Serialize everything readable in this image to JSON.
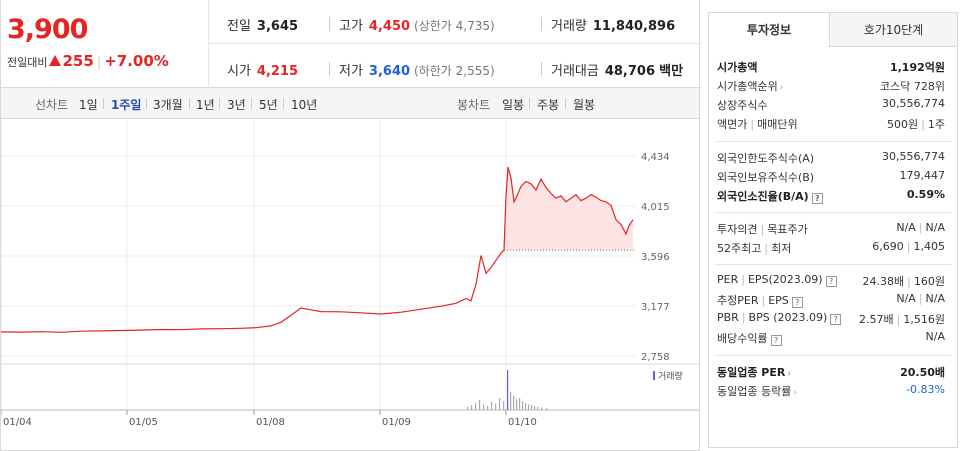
{
  "quote": {
    "price": "3,900",
    "change_label": "전일대비",
    "change_amount": "255",
    "change_rate": "+7.00%",
    "prev_close_label": "전일",
    "prev_close": "3,645",
    "open_label": "시가",
    "open": "4,215",
    "high_label": "고가",
    "high": "4,450",
    "upper_limit": "(상한가 4,735)",
    "low_label": "저가",
    "low": "3,640",
    "lower_limit": "(하한가 2,555)",
    "volume_label": "거래량",
    "volume": "11,840,896",
    "amount_label": "거래대금",
    "amount": "48,706",
    "amount_unit": "백만"
  },
  "periods": {
    "line_title": "선차트",
    "line_items": [
      "1일",
      "1주일",
      "3개월",
      "1년",
      "3년",
      "5년",
      "10년"
    ],
    "line_selected": 1,
    "candle_title": "봉차트",
    "candle_items": [
      "일봉",
      "주봉",
      "월봉"
    ]
  },
  "chart_data": {
    "type": "line",
    "y_ticks": [
      "4,434",
      "4,015",
      "3,596",
      "3,177",
      "2,758"
    ],
    "ylim": [
      2758,
      4434
    ],
    "x_ticks": [
      "01/04",
      "01/05",
      "01/08",
      "01/09",
      "01/10"
    ],
    "reference_price": 3645,
    "volume_legend": "거래량",
    "price_series": [
      [
        0,
        2960
      ],
      [
        20,
        2958
      ],
      [
        40,
        2962
      ],
      [
        60,
        2957
      ],
      [
        80,
        2966
      ],
      [
        100,
        2968
      ],
      [
        120,
        2972
      ],
      [
        140,
        2975
      ],
      [
        160,
        2980
      ],
      [
        180,
        2978
      ],
      [
        200,
        2985
      ],
      [
        220,
        2987
      ],
      [
        240,
        2990
      ],
      [
        255,
        2995
      ],
      [
        270,
        3010
      ],
      [
        280,
        3040
      ],
      [
        290,
        3100
      ],
      [
        300,
        3160
      ],
      [
        310,
        3145
      ],
      [
        320,
        3130
      ],
      [
        340,
        3128
      ],
      [
        360,
        3120
      ],
      [
        380,
        3110
      ],
      [
        400,
        3125
      ],
      [
        420,
        3150
      ],
      [
        440,
        3175
      ],
      [
        455,
        3200
      ],
      [
        465,
        3240
      ],
      [
        470,
        3220
      ],
      [
        475,
        3360
      ],
      [
        480,
        3600
      ],
      [
        485,
        3450
      ],
      [
        490,
        3500
      ],
      [
        495,
        3560
      ],
      [
        500,
        3620
      ],
      [
        503,
        3645
      ],
      [
        505,
        4100
      ],
      [
        507,
        4340
      ],
      [
        510,
        4250
      ],
      [
        513,
        4050
      ],
      [
        516,
        4100
      ],
      [
        520,
        4180
      ],
      [
        525,
        4220
      ],
      [
        530,
        4200
      ],
      [
        535,
        4150
      ],
      [
        540,
        4240
      ],
      [
        545,
        4170
      ],
      [
        550,
        4120
      ],
      [
        555,
        4080
      ],
      [
        560,
        4100
      ],
      [
        565,
        4050
      ],
      [
        570,
        4080
      ],
      [
        575,
        4110
      ],
      [
        580,
        4060
      ],
      [
        585,
        4080
      ],
      [
        590,
        4110
      ],
      [
        595,
        4090
      ],
      [
        600,
        4060
      ],
      [
        605,
        4050
      ],
      [
        610,
        4020
      ],
      [
        615,
        3900
      ],
      [
        620,
        3860
      ],
      [
        625,
        3780
      ],
      [
        628,
        3850
      ],
      [
        632,
        3900
      ]
    ],
    "volume_series": [
      [
        466,
        0.08
      ],
      [
        470,
        0.12
      ],
      [
        474,
        0.18
      ],
      [
        478,
        0.25
      ],
      [
        482,
        0.14
      ],
      [
        486,
        0.1
      ],
      [
        490,
        0.2
      ],
      [
        494,
        0.16
      ],
      [
        498,
        0.3
      ],
      [
        502,
        0.22
      ],
      [
        506,
        1.0
      ],
      [
        509,
        0.45
      ],
      [
        512,
        0.35
      ],
      [
        515,
        0.28
      ],
      [
        518,
        0.3
      ],
      [
        521,
        0.22
      ],
      [
        524,
        0.18
      ],
      [
        527,
        0.14
      ],
      [
        530,
        0.12
      ],
      [
        533,
        0.1
      ],
      [
        536,
        0.08
      ],
      [
        540,
        0.06
      ],
      [
        545,
        0.05
      ]
    ]
  },
  "tabs": [
    "투자정보",
    "호가10단계"
  ],
  "info": {
    "market_cap_label": "시가총액",
    "market_cap": "1,192억원",
    "market_cap_rank_label": "시가총액순위",
    "market_cap_rank": "코스닥 728위",
    "shares_label": "상장주식수",
    "shares": "30,556,774",
    "par_label": "액면가",
    "trade_unit_label": "매매단위",
    "par": "500원",
    "trade_unit": "1주",
    "foreign_limit_label": "외국인한도주식수(A)",
    "foreign_limit": "30,556,774",
    "foreign_hold_label": "외국인보유주식수(B)",
    "foreign_hold": "179,447",
    "foreign_ratio_label": "외국인소진율(B/A)",
    "foreign_ratio": "0.59%",
    "opinion_label": "투자의견",
    "target_label": "목표주가",
    "opinion": "N/A",
    "target": "N/A",
    "w52_high_label": "52주최고",
    "w52_low_label": "최저",
    "w52_high": "6,690",
    "w52_low": "1,405",
    "per_label": "PER",
    "eps_label": "EPS(2023.09)",
    "per": "24.38배",
    "eps": "160원",
    "est_per_label": "추정PER",
    "est_eps_label": "EPS",
    "est_per": "N/A",
    "est_eps": "N/A",
    "pbr_label": "PBR",
    "bps_label": "BPS (2023.09)",
    "pbr": "2.57배",
    "bps": "1,516원",
    "dividend_label": "배당수익률",
    "dividend": "N/A",
    "sector_per_label": "동일업종 PER",
    "sector_per": "20.50배",
    "sector_rate_label": "동일업종 등락률",
    "sector_rate": "-0.83%"
  }
}
